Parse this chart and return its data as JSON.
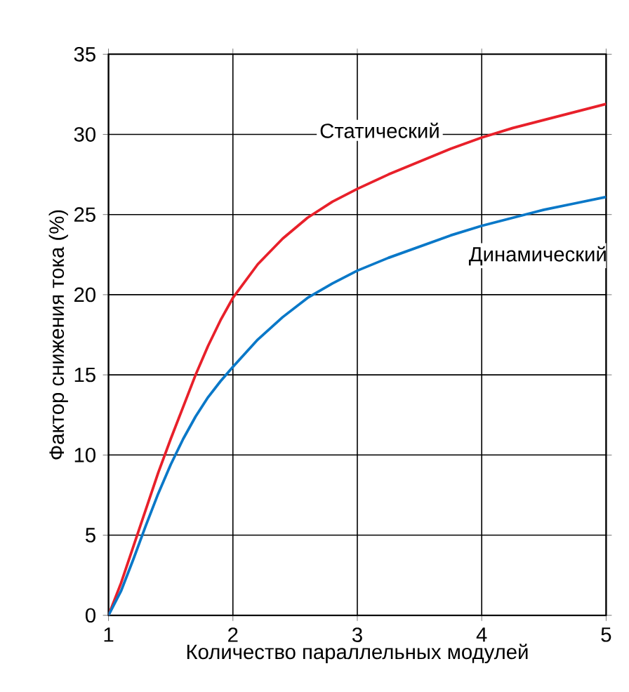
{
  "chart_data": {
    "type": "line",
    "xlabel": "Количество параллельных модулей",
    "ylabel": "Фактор снижения тока (%)",
    "xlim": [
      1,
      5
    ],
    "ylim": [
      0,
      35
    ],
    "xticks": [
      1,
      2,
      3,
      4,
      5
    ],
    "yticks": [
      0,
      5,
      10,
      15,
      20,
      25,
      30,
      35
    ],
    "grid": true,
    "legend": false,
    "marker": "none",
    "line_style": "solid",
    "series": [
      {
        "name": "Статический",
        "color": "#e8202a",
        "x": [
          1,
          1.1,
          1.2,
          1.3,
          1.4,
          1.5,
          1.6,
          1.7,
          1.8,
          1.9,
          2,
          2.2,
          2.4,
          2.6,
          2.8,
          3,
          3.25,
          3.5,
          3.75,
          4,
          4.25,
          4.5,
          4.75,
          5
        ],
        "values": [
          0,
          2,
          4.3,
          6.6,
          8.9,
          11,
          13,
          15,
          16.8,
          18.4,
          19.8,
          21.9,
          23.5,
          24.8,
          25.8,
          26.6,
          27.5,
          28.3,
          29.1,
          29.8,
          30.4,
          30.9,
          31.4,
          31.9
        ]
      },
      {
        "name": "Динамический",
        "color": "#0a78c8",
        "x": [
          1,
          1.1,
          1.2,
          1.3,
          1.4,
          1.5,
          1.6,
          1.7,
          1.8,
          1.9,
          2,
          2.2,
          2.4,
          2.6,
          2.8,
          3,
          3.25,
          3.5,
          3.75,
          4,
          4.25,
          4.5,
          4.75,
          5
        ],
        "values": [
          0,
          1.5,
          3.5,
          5.6,
          7.6,
          9.4,
          11,
          12.4,
          13.6,
          14.6,
          15.5,
          17.2,
          18.6,
          19.8,
          20.7,
          21.5,
          22.3,
          23,
          23.7,
          24.3,
          24.8,
          25.3,
          25.7,
          26.1
        ]
      }
    ]
  }
}
